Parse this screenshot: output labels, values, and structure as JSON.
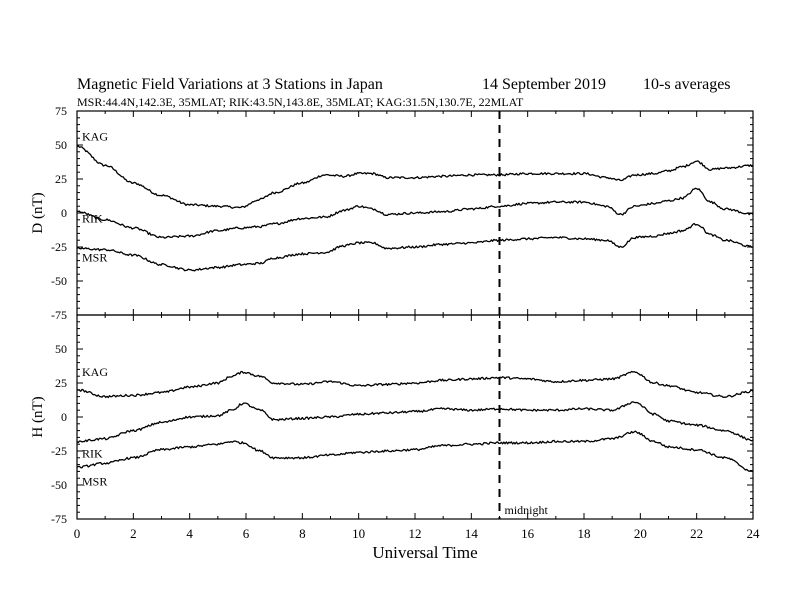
{
  "title": {
    "main": "Magnetic Field Variations at 3 Stations in Japan",
    "date_day_month": "14 September",
    "year": "2019",
    "averages": "10-s averages",
    "stations_line": "MSR:44.4N,142.3E, 35MLAT;  RIK:43.5N,143.8E, 35MLAT;  KAG:31.5N,130.7E, 22MLAT"
  },
  "chart_data": [
    {
      "type": "line",
      "panel": "D",
      "ylabel": "D (nT)",
      "ylim": [
        -75,
        75
      ],
      "yticks": [
        "75",
        "50",
        "25",
        "0",
        "-25",
        "-50",
        "-75"
      ],
      "xlim": [
        0,
        24
      ],
      "x": [
        0,
        1,
        2,
        3,
        4,
        5,
        5.8,
        6.5,
        7,
        8,
        8.8,
        9.5,
        10,
        10.5,
        11,
        12,
        13,
        14,
        15,
        16,
        17,
        18,
        18.8,
        19.3,
        19.8,
        20.5,
        21,
        21.5,
        22,
        22.5,
        23,
        24
      ],
      "series": [
        {
          "name": "KAG",
          "values": [
            49,
            35,
            22,
            13,
            6,
            5,
            4,
            10,
            15,
            22,
            28,
            27,
            29,
            29,
            26,
            26,
            27,
            28,
            28,
            29,
            29,
            29,
            26,
            24,
            28,
            29,
            31,
            34,
            38,
            32,
            33,
            35
          ]
        },
        {
          "name": "RIK",
          "values": [
            1,
            -5,
            -11,
            -18,
            -17,
            -13,
            -11,
            -10,
            -8,
            -4,
            -3,
            2,
            5,
            3,
            -1,
            0,
            1,
            3,
            5,
            7,
            8,
            8,
            5,
            -1,
            5,
            7,
            9,
            11,
            18,
            8,
            3,
            -1
          ]
        },
        {
          "name": "MSR",
          "values": [
            -26,
            -27,
            -31,
            -38,
            -42,
            -40,
            -38,
            -37,
            -33,
            -30,
            -29,
            -24,
            -22,
            -22,
            -26,
            -25,
            -23,
            -22,
            -20,
            -19,
            -18,
            -19,
            -20,
            -25,
            -18,
            -17,
            -15,
            -13,
            -8,
            -16,
            -20,
            -25
          ]
        }
      ]
    },
    {
      "type": "line",
      "panel": "H",
      "ylabel": "H (nT)",
      "ylim": [
        -75,
        75
      ],
      "yticks": [
        "75",
        "50",
        "25",
        "0",
        "-25",
        "-50",
        "-75"
      ],
      "xlim": [
        0,
        24
      ],
      "xticks": [
        "0",
        "2",
        "4",
        "6",
        "8",
        "10",
        "12",
        "14",
        "16",
        "18",
        "20",
        "22",
        "24"
      ],
      "xlabel": "Universal Time",
      "x": [
        0,
        1,
        2,
        3,
        4,
        5,
        5.5,
        5.9,
        6.5,
        7,
        8,
        9,
        10,
        11,
        12,
        13,
        14,
        15,
        16,
        17,
        18,
        19,
        19.8,
        20.5,
        21,
        22,
        23,
        24
      ],
      "series": [
        {
          "name": "KAG",
          "values": [
            20,
            15,
            16,
            18,
            22,
            25,
            30,
            33,
            30,
            25,
            24,
            26,
            23,
            24,
            25,
            27,
            28,
            29,
            28,
            26,
            27,
            28,
            33,
            25,
            23,
            18,
            15,
            19
          ]
        },
        {
          "name": "RIK",
          "values": [
            -18,
            -16,
            -10,
            -4,
            0,
            1,
            5,
            10,
            5,
            -2,
            -1,
            0,
            2,
            3,
            4,
            6,
            5,
            6,
            5,
            5,
            6,
            5,
            11,
            2,
            -3,
            -6,
            -10,
            -17
          ]
        },
        {
          "name": "MSR",
          "values": [
            -37,
            -34,
            -30,
            -24,
            -22,
            -20,
            -18,
            -19,
            -25,
            -30,
            -30,
            -28,
            -26,
            -25,
            -24,
            -21,
            -20,
            -19,
            -19,
            -18,
            -18,
            -16,
            -11,
            -18,
            -22,
            -24,
            -30,
            -40
          ]
        }
      ]
    }
  ],
  "annotations": {
    "midnight_label": "midnight",
    "midnight_ut": 15
  }
}
